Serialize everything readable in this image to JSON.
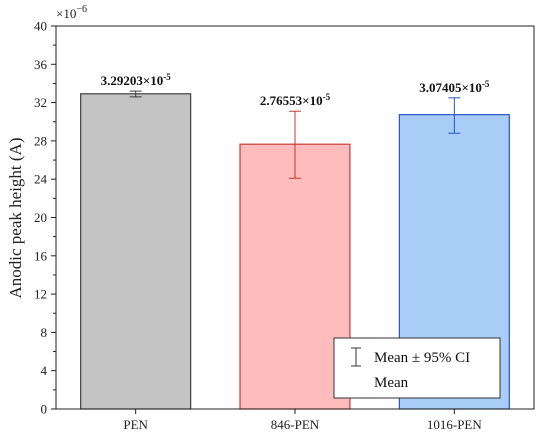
{
  "chart_data": {
    "type": "bar",
    "categories": [
      "PEN",
      "846-PEN",
      "1016-PEN"
    ],
    "values": [
      3.29203e-05,
      2.76553e-05,
      3.07405e-05
    ],
    "ci_low": [
      3.26e-05,
      2.41e-05,
      2.88e-05
    ],
    "ci_high": [
      3.32e-05,
      3.11e-05,
      3.25e-05
    ],
    "data_labels": [
      {
        "mantissa": "3.29203×10",
        "exp": "-5"
      },
      {
        "mantissa": "2.76553×10",
        "exp": "-5"
      },
      {
        "mantissa": "3.07405×10",
        "exp": "-5"
      }
    ],
    "bar_colors": [
      {
        "fill": "#c4c4c4",
        "stroke": "#404040",
        "err": "#404040"
      },
      {
        "fill": "#ffbcbc",
        "stroke": "#cc3a3a",
        "err": "#c0392b"
      },
      {
        "fill": "#a8cdf7",
        "stroke": "#2a52c9",
        "err": "#2a52c9"
      }
    ],
    "xlabel": "",
    "ylabel": "Anodic  peak height (A)",
    "ylim_scaled": [
      0,
      40
    ],
    "yticks_scaled": [
      0,
      4,
      8,
      12,
      16,
      20,
      24,
      28,
      32,
      36,
      40
    ],
    "y_multiplier": {
      "base": "×10",
      "exp": "−6",
      "factor": 1e-06
    },
    "grid": false,
    "legend": {
      "placement": "bottom-right",
      "entries": [
        {
          "label": "Mean ± 95% CI",
          "symbol": "errorbar"
        },
        {
          "label": "Mean",
          "symbol": "none"
        }
      ]
    }
  }
}
